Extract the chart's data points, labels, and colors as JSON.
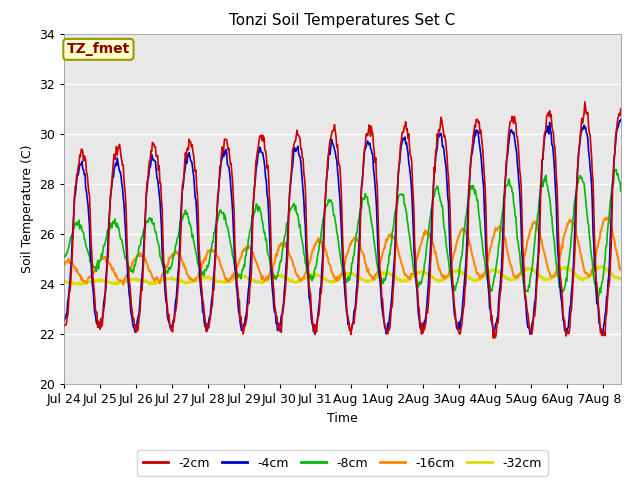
{
  "title": "Tonzi Soil Temperatures Set C",
  "xlabel": "Time",
  "ylabel": "Soil Temperature (C)",
  "xlim_days": [
    0,
    15.5
  ],
  "ylim": [
    20,
    34
  ],
  "yticks": [
    20,
    22,
    24,
    26,
    28,
    30,
    32,
    34
  ],
  "xtick_labels": [
    "Jul 24",
    "Jul 25",
    "Jul 26",
    "Jul 27",
    "Jul 28",
    "Jul 29",
    "Jul 30",
    "Jul 31",
    "Aug 1",
    "Aug 2",
    "Aug 3",
    "Aug 4",
    "Aug 5",
    "Aug 6",
    "Aug 7",
    "Aug 8"
  ],
  "xtick_positions": [
    0,
    1,
    2,
    3,
    4,
    5,
    6,
    7,
    8,
    9,
    10,
    11,
    12,
    13,
    14,
    15
  ],
  "series": {
    "-2cm": {
      "color": "#cc0000",
      "lw": 1.2
    },
    "-4cm": {
      "color": "#0000cc",
      "lw": 1.2
    },
    "-8cm": {
      "color": "#00bb00",
      "lw": 1.2
    },
    "-16cm": {
      "color": "#ff8800",
      "lw": 1.5
    },
    "-32cm": {
      "color": "#dddd00",
      "lw": 2.0
    }
  },
  "bg_color": "#e8e8e8",
  "annotation_text": "TZ_fmet",
  "annotation_color": "#880000",
  "annotation_bg": "#ffffcc",
  "annotation_border": "#999900"
}
